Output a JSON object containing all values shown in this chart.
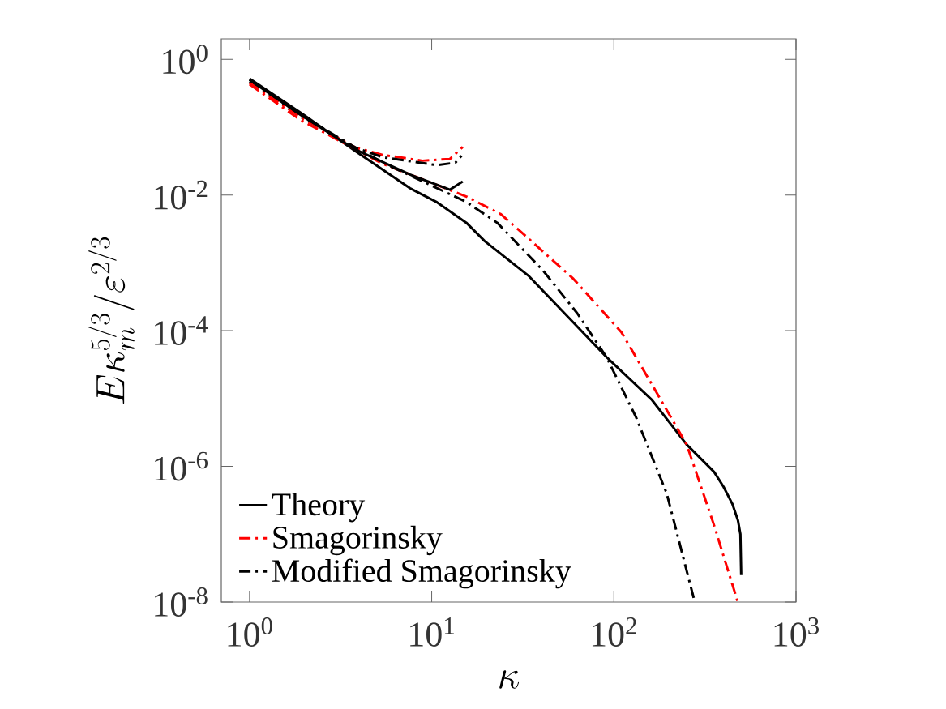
{
  "chart_data": {
    "type": "line",
    "xlabel": "\\kappa",
    "ylabel": "E\\kappa_m^{5/3}/\\varepsilon^{2/3}",
    "log": "xy",
    "legend": "bottom left",
    "xlim": [
      0.7,
      1000
    ],
    "ylim": [
      1e-08,
      2
    ],
    "xticks": [
      {
        "value": 1,
        "label": "10$^{0}$"
      },
      {
        "value": 10,
        "label": "10$^{1}$"
      },
      {
        "value": 100,
        "label": "10$^{2}$"
      },
      {
        "value": 1000,
        "label": "10$^{3}$"
      }
    ],
    "yticks": [
      {
        "value": 1e-08,
        "label": "10$^{-8}$"
      },
      {
        "value": 1e-06,
        "label": "10$^{-6}$"
      },
      {
        "value": 0.0001,
        "label": "10$^{-4}$"
      },
      {
        "value": 0.01,
        "label": "10$^{-2}$"
      },
      {
        "value": 1,
        "label": "10$^{0}$"
      }
    ],
    "series": [
      {
        "name": "Theory",
        "color": "#000000",
        "line_style": "solid",
        "x": [
          1,
          1.92,
          3.8,
          7.6,
          10.7,
          15.5,
          19.5,
          33.9,
          91,
          162,
          251,
          355,
          400,
          447,
          480,
          495,
          500
        ],
        "values": [
          0.52,
          0.162,
          0.0447,
          0.0126,
          0.0078,
          0.0039,
          0.0021,
          0.00065,
          4.1e-05,
          9.5e-06,
          2.1e-06,
          8.3e-07,
          5e-07,
          2.8e-07,
          1.6e-07,
          1e-07,
          2.5e-08
        ]
      },
      {
        "name": "Smagorinsky",
        "color": "#ff0000",
        "line_style": "dashdot",
        "x": [
          1,
          1.92,
          5.4,
          15.5,
          24,
          33.9,
          60,
          110,
          162,
          251,
          355,
          479
        ],
        "values": [
          0.43,
          0.126,
          0.0288,
          0.0095,
          0.0052,
          0.0023,
          0.00058,
          9.5e-05,
          1.6e-05,
          2.1e-06,
          1.35e-07,
          1e-08
        ]
      },
      {
        "name": "Modified Smagorinsky",
        "color": "#000000",
        "line_style": "dashdot",
        "x": [
          1,
          1.92,
          5.4,
          15.5,
          22.9,
          40.7,
          63,
          91,
          132,
          195,
          278
        ],
        "values": [
          0.47,
          0.14,
          0.03,
          0.0079,
          0.0039,
          0.00078,
          0.00018,
          4.1e-05,
          5.4e-06,
          4e-07,
          1e-08
        ]
      },
      {
        "color": "#ff0000",
        "line_style": "dashdot",
        "x": [
          1,
          1.92,
          3.8,
          5.4,
          8.9,
          12.6,
          14.8
        ],
        "values": [
          0.45,
          0.14,
          0.05,
          0.039,
          0.032,
          0.034,
          0.051
        ]
      },
      {
        "color": "#000000",
        "line_style": "dashdot",
        "x": [
          1,
          1.92,
          3.8,
          5.4,
          10.7,
          13.5,
          14.6
        ],
        "values": [
          0.5,
          0.15,
          0.05,
          0.036,
          0.0275,
          0.03,
          0.038
        ]
      },
      {
        "color": "#000000",
        "line_style": "solid",
        "x": [
          1,
          1.92,
          3.8,
          7.6,
          12.6,
          14.8
        ],
        "values": [
          0.5,
          0.15,
          0.047,
          0.02,
          0.012,
          0.0158
        ]
      }
    ]
  }
}
